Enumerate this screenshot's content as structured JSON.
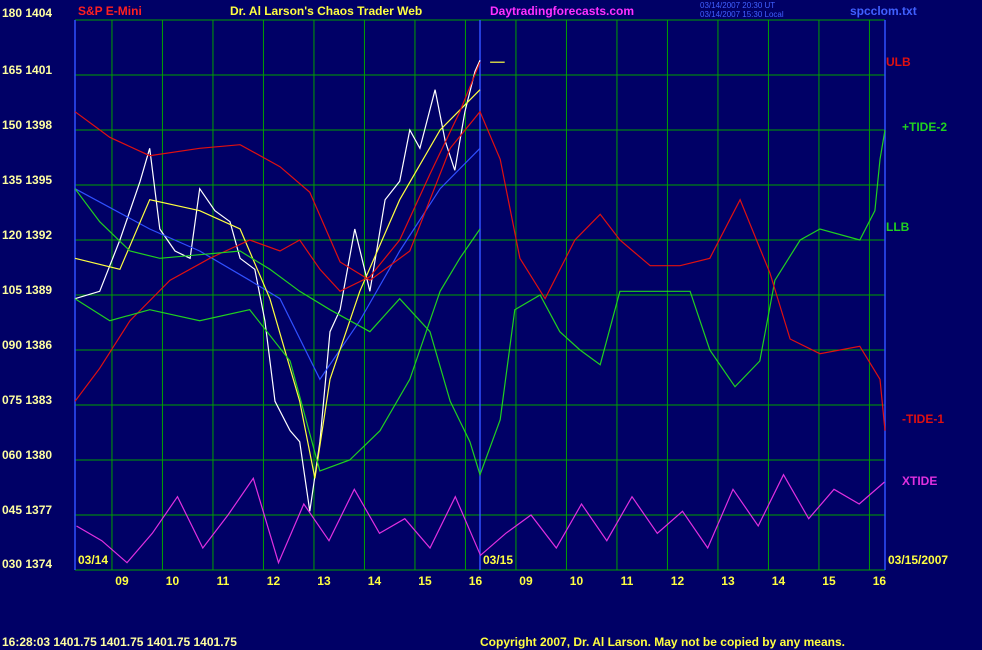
{
  "chart_data": {
    "type": "line",
    "header": {
      "symbol": "S&P E-Mini",
      "title": "Dr. Al Larson's Chaos Trader Web",
      "site": "Daytradingforecasts.com",
      "stamp1": "03/14/2007 20:30 UT",
      "stamp2": "03/14/2007 15:30 Local",
      "file": "spcclom.txt"
    },
    "footer": {
      "quote": "16:28:03  1401.75 1401.75 1401.75 1401.75",
      "copyright": "Copyright 2007, Dr. Al Larson. May not be copied by any means."
    },
    "date_labels": [
      "03/14",
      "03/15",
      "03/15/2007"
    ],
    "xlim": [
      -0.93,
      15.11
    ],
    "ylim": [
      30,
      180
    ],
    "grid": true,
    "xticks": [
      {
        "value": 0,
        "label": "09"
      },
      {
        "value": 1,
        "label": "10"
      },
      {
        "value": 2,
        "label": "11"
      },
      {
        "value": 3,
        "label": "12"
      },
      {
        "value": 4,
        "label": "13"
      },
      {
        "value": 5,
        "label": "14"
      },
      {
        "value": 6,
        "label": "15"
      },
      {
        "value": 7,
        "label": "16"
      },
      {
        "value": 8,
        "label": "09"
      },
      {
        "value": 9,
        "label": "10"
      },
      {
        "value": 10,
        "label": "11"
      },
      {
        "value": 11,
        "label": "12"
      },
      {
        "value": 12,
        "label": "13"
      },
      {
        "value": 13,
        "label": "14"
      },
      {
        "value": 14,
        "label": "15"
      },
      {
        "value": 15,
        "label": "16"
      }
    ],
    "yticks": [
      {
        "value": 180,
        "label": "180 1404"
      },
      {
        "value": 165,
        "label": "165 1401"
      },
      {
        "value": 150,
        "label": "150 1398"
      },
      {
        "value": 135,
        "label": "135 1395"
      },
      {
        "value": 120,
        "label": "120 1392"
      },
      {
        "value": 105,
        "label": "105 1389"
      },
      {
        "value": 90,
        "label": "090 1386"
      },
      {
        "value": 75,
        "label": "075 1383"
      },
      {
        "value": 60,
        "label": "060 1380"
      },
      {
        "value": 45,
        "label": "045 1377"
      },
      {
        "value": 30,
        "label": "030 1374"
      }
    ],
    "series": [
      {
        "name": "ULB",
        "color": "#e01010",
        "x": [
          -0.93,
          -0.44,
          0.16,
          0.95,
          1.74,
          2.53,
          3.13,
          3.52,
          3.92,
          4.32,
          4.91,
          5.5,
          6.1,
          6.69,
          7.09
        ],
        "values": [
          76,
          85,
          98,
          109,
          115,
          120,
          117,
          120,
          112,
          106,
          110,
          120,
          138,
          155,
          168.5
        ]
      },
      {
        "name": "+TIDE-2",
        "color": "#20d020",
        "x": [
          -0.93,
          -0.44,
          0.16,
          0.75,
          1.54,
          2.34,
          2.93,
          3.52,
          4.12,
          4.91,
          5.5,
          6.1,
          6.5,
          6.89,
          7.09,
          7.49,
          7.78,
          8.28,
          8.67,
          9.07,
          9.47,
          9.86,
          10.46,
          11.05,
          11.25,
          11.64,
          12.14,
          12.63,
          12.93,
          13.43,
          13.82,
          14.61,
          14.91,
          15.01,
          15.11
        ],
        "values": [
          134,
          125,
          117,
          115,
          116,
          117,
          112,
          106,
          101,
          95,
          104,
          95,
          76,
          65,
          56,
          71,
          101,
          105,
          95,
          90,
          86,
          106,
          106,
          106,
          106,
          90,
          80,
          87,
          109,
          120,
          123,
          120,
          128,
          142,
          150
        ]
      },
      {
        "name": "LLB",
        "color": "#20d020",
        "x": [
          -0.93,
          -0.24,
          0.55,
          1.54,
          2.53,
          3.33,
          3.92,
          4.51,
          5.11,
          5.7,
          6.3,
          6.69,
          7.09
        ],
        "values": [
          104,
          98,
          101,
          98,
          101,
          87,
          57,
          60,
          68,
          82,
          106,
          115,
          123
        ]
      },
      {
        "name": "-TIDE-1",
        "color": "#e01010",
        "x": [
          -0.93,
          -0.24,
          0.55,
          1.54,
          2.34,
          3.13,
          3.72,
          4.32,
          4.91,
          5.7,
          6.5,
          7.09,
          7.49,
          7.88,
          8.38,
          8.97,
          9.47,
          9.86,
          10.46,
          11.05,
          11.64,
          12.24,
          12.83,
          13.23,
          13.82,
          14.61,
          15.01,
          15.11
        ],
        "values": [
          155,
          148,
          143,
          145,
          146,
          140,
          133,
          114,
          109,
          117,
          145,
          155,
          142,
          115,
          104,
          120,
          127,
          120,
          113,
          113,
          115,
          131,
          111,
          93,
          89,
          91,
          82,
          68
        ]
      },
      {
        "name": "XTIDE",
        "color": "#e030e0",
        "x": [
          -0.9,
          -0.4,
          0.1,
          0.6,
          1.1,
          1.6,
          2.1,
          2.6,
          3.1,
          3.6,
          4.1,
          4.6,
          5.1,
          5.6,
          6.1,
          6.6,
          7.1,
          7.6,
          8.1,
          8.6,
          9.1,
          9.6,
          10.1,
          10.6,
          11.1,
          11.6,
          12.1,
          12.6,
          13.1,
          13.6,
          14.1,
          14.6,
          15.1
        ],
        "values": [
          42,
          38,
          32,
          40,
          50,
          36,
          45,
          55,
          32,
          48,
          38,
          52,
          40,
          44,
          36,
          50,
          34,
          40,
          45,
          36,
          48,
          38,
          50,
          40,
          46,
          36,
          52,
          42,
          56,
          44,
          52,
          48,
          54
        ]
      }
    ],
    "overlays": [
      {
        "color": "#ffffff",
        "x": [
          -0.93,
          -0.44,
          -0.04,
          0.36,
          0.55,
          0.75,
          1.05,
          1.35,
          1.54,
          1.84,
          2.14,
          2.34,
          2.63,
          2.83,
          3.03,
          3.33,
          3.52,
          3.72,
          3.92,
          4.12,
          4.32,
          4.61,
          4.91,
          5.21,
          5.5,
          5.7,
          5.9,
          6.2,
          6.4,
          6.59,
          6.79,
          6.99,
          7.09
        ],
        "values": [
          104,
          106,
          120,
          136,
          145,
          123,
          117,
          115,
          134,
          128,
          125,
          115,
          112,
          98,
          76,
          68,
          65,
          46,
          65,
          95,
          101,
          123,
          106,
          131,
          136,
          150,
          145,
          161,
          147,
          139,
          155,
          166,
          169
        ]
      },
      {
        "color": "#3050ff",
        "x": [
          -0.93,
          0.55,
          1.54,
          2.53,
          3.13,
          3.92,
          4.71,
          5.5,
          6.3,
          7.09
        ],
        "values": [
          134,
          123,
          117,
          109,
          104,
          82,
          98,
          117,
          134,
          145
        ]
      },
      {
        "color": "#ffff40",
        "x": [
          -0.93,
          -0.04,
          0.55,
          1.54,
          2.34,
          2.93,
          3.52,
          3.82,
          4.12,
          4.71,
          5.5,
          6.3,
          7.09
        ],
        "values": [
          115,
          112,
          131,
          128,
          123,
          104,
          76,
          55,
          82,
          106,
          131,
          150,
          161
        ]
      },
      {
        "color": "#ffff40",
        "x": [
          7.29,
          7.58
        ],
        "values": [
          168.5,
          168.5
        ]
      }
    ]
  }
}
